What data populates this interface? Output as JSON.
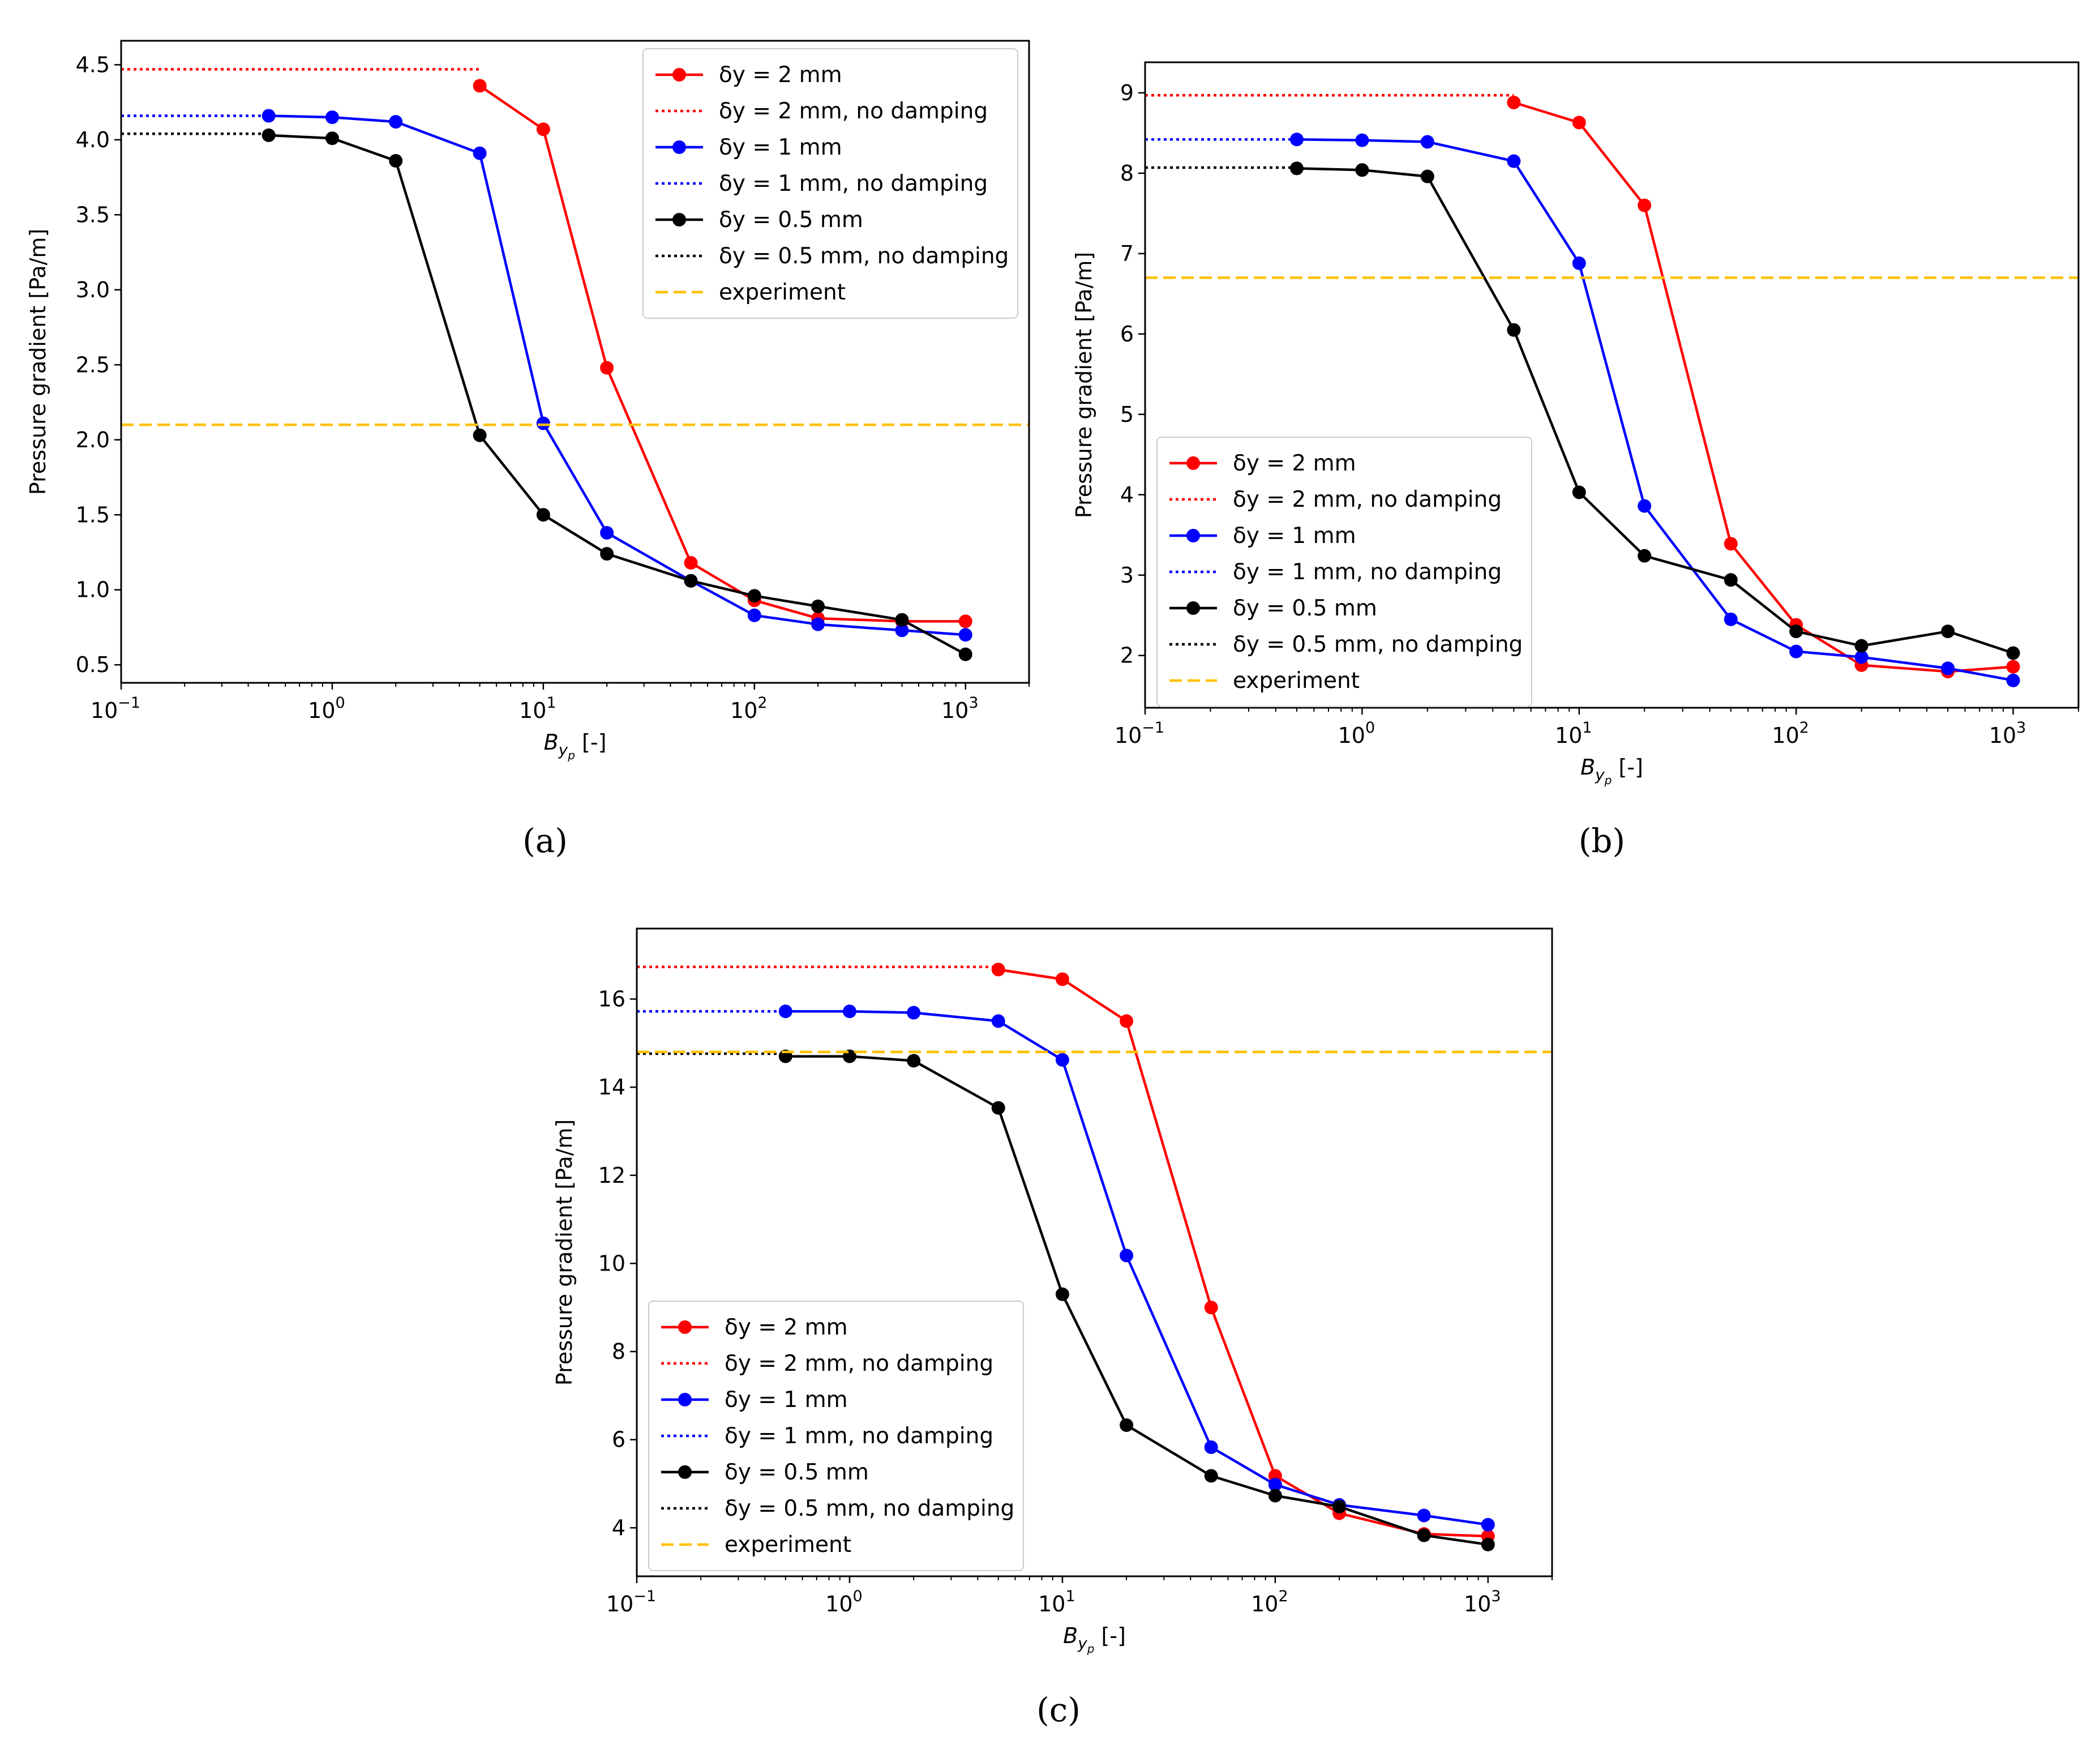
{
  "chart_data": [
    {
      "id": "a",
      "panel_label": "(a)",
      "type": "line",
      "xscale": "log",
      "xlim": [
        0.1,
        2000
      ],
      "ylim": [
        0.38,
        4.66
      ],
      "yticks": [
        0.5,
        1.0,
        1.5,
        2.0,
        2.5,
        3.0,
        3.5,
        4.0,
        4.5
      ],
      "ytick_labels": [
        "0.5",
        "1.0",
        "1.5",
        "2.0",
        "2.5",
        "3.0",
        "3.5",
        "4.0",
        "4.5"
      ],
      "xticks": [
        {
          "base": "10",
          "exp": "−1",
          "value": 0.1
        },
        {
          "base": "10",
          "exp": "0",
          "value": 1
        },
        {
          "base": "10",
          "exp": "1",
          "value": 10
        },
        {
          "base": "10",
          "exp": "2",
          "value": 100
        },
        {
          "base": "10",
          "exp": "3",
          "value": 1000
        }
      ],
      "xlabel": {
        "main": "B",
        "sub": "y",
        "subsub": "p",
        "unit": " [-]"
      },
      "ylabel": "Pressure gradient [Pa/m]",
      "legend_position": "top-right",
      "series": [
        {
          "name": "δy = 2 mm",
          "color": "#ff0000",
          "style": "solid-marker",
          "x": [
            5,
            10,
            20,
            50,
            100,
            200,
            500,
            1000
          ],
          "y": [
            4.36,
            4.07,
            2.48,
            1.18,
            0.93,
            0.81,
            0.79,
            0.79
          ]
        },
        {
          "name": "δy = 2 mm, no damping",
          "color": "#ff0000",
          "style": "dotted",
          "x": [
            0.1,
            5
          ],
          "y": [
            4.47,
            4.47
          ]
        },
        {
          "name": "δy = 1 mm",
          "color": "#0000ff",
          "style": "solid-marker",
          "x": [
            0.5,
            1,
            2,
            5,
            10,
            20,
            50,
            100,
            200,
            500,
            1000
          ],
          "y": [
            4.16,
            4.15,
            4.12,
            3.91,
            2.11,
            1.38,
            1.06,
            0.83,
            0.77,
            0.73,
            0.7
          ]
        },
        {
          "name": "δy = 1 mm, no damping",
          "color": "#0000ff",
          "style": "dotted",
          "x": [
            0.1,
            0.5
          ],
          "y": [
            4.16,
            4.16
          ]
        },
        {
          "name": "δy = 0.5 mm",
          "color": "#000000",
          "style": "solid-marker",
          "x": [
            0.5,
            1,
            2,
            5,
            10,
            20,
            50,
            100,
            200,
            500,
            1000
          ],
          "y": [
            4.03,
            4.01,
            3.86,
            2.03,
            1.5,
            1.24,
            1.06,
            0.96,
            0.89,
            0.8,
            0.57
          ]
        },
        {
          "name": "δy = 0.5 mm, no damping",
          "color": "#000000",
          "style": "dotted",
          "x": [
            0.1,
            0.5
          ],
          "y": [
            4.04,
            4.04
          ]
        },
        {
          "name": "experiment",
          "color": "#ffc000",
          "style": "dashed",
          "hline": 2.1
        }
      ]
    },
    {
      "id": "b",
      "panel_label": "(b)",
      "type": "line",
      "xscale": "log",
      "xlim": [
        0.1,
        2000
      ],
      "ylim": [
        1.35,
        9.38
      ],
      "yticks": [
        2,
        3,
        4,
        5,
        6,
        7,
        8,
        9
      ],
      "ytick_labels": [
        "2",
        "3",
        "4",
        "5",
        "6",
        "7",
        "8",
        "9"
      ],
      "xticks": [
        {
          "base": "10",
          "exp": "−1",
          "value": 0.1
        },
        {
          "base": "10",
          "exp": "0",
          "value": 1
        },
        {
          "base": "10",
          "exp": "1",
          "value": 10
        },
        {
          "base": "10",
          "exp": "2",
          "value": 100
        },
        {
          "base": "10",
          "exp": "3",
          "value": 1000
        }
      ],
      "xlabel": {
        "main": "B",
        "sub": "y",
        "subsub": "p",
        "unit": " [-]"
      },
      "ylabel": "Pressure gradient [Pa/m]",
      "legend_position": "bottom-left",
      "series": [
        {
          "name": "δy = 2 mm",
          "color": "#ff0000",
          "style": "solid-marker",
          "x": [
            5,
            10,
            20,
            50,
            100,
            200,
            500,
            1000
          ],
          "y": [
            8.88,
            8.63,
            7.6,
            3.39,
            2.38,
            1.88,
            1.8,
            1.86
          ]
        },
        {
          "name": "δy = 2 mm, no damping",
          "color": "#ff0000",
          "style": "dotted",
          "x": [
            0.1,
            5
          ],
          "y": [
            8.97,
            8.97
          ]
        },
        {
          "name": "δy = 1 mm",
          "color": "#0000ff",
          "style": "solid-marker",
          "x": [
            0.5,
            1,
            2,
            5,
            10,
            20,
            50,
            100,
            200,
            500,
            1000
          ],
          "y": [
            8.42,
            8.41,
            8.39,
            8.15,
            6.88,
            3.86,
            2.45,
            2.05,
            1.98,
            1.84,
            1.69
          ]
        },
        {
          "name": "δy = 1 mm, no damping",
          "color": "#0000ff",
          "style": "dotted",
          "x": [
            0.1,
            0.5
          ],
          "y": [
            8.42,
            8.42
          ]
        },
        {
          "name": "δy = 0.5 mm",
          "color": "#000000",
          "style": "solid-marker",
          "x": [
            0.5,
            1,
            2,
            5,
            10,
            20,
            50,
            100,
            200,
            500,
            1000
          ],
          "y": [
            8.06,
            8.04,
            7.96,
            6.05,
            4.03,
            3.24,
            2.94,
            2.3,
            2.12,
            2.3,
            2.03
          ]
        },
        {
          "name": "δy = 0.5 mm, no damping",
          "color": "#000000",
          "style": "dotted",
          "x": [
            0.1,
            0.5
          ],
          "y": [
            8.07,
            8.07
          ]
        },
        {
          "name": "experiment",
          "color": "#ffc000",
          "style": "dashed",
          "hline": 6.7
        }
      ]
    },
    {
      "id": "c",
      "panel_label": "(c)",
      "type": "line",
      "xscale": "log",
      "xlim": [
        0.1,
        2000
      ],
      "ylim": [
        2.9,
        17.6
      ],
      "yticks": [
        4,
        6,
        8,
        10,
        12,
        14,
        16
      ],
      "ytick_labels": [
        "4",
        "6",
        "8",
        "10",
        "12",
        "14",
        "16"
      ],
      "xticks": [
        {
          "base": "10",
          "exp": "−1",
          "value": 0.1
        },
        {
          "base": "10",
          "exp": "0",
          "value": 1
        },
        {
          "base": "10",
          "exp": "1",
          "value": 10
        },
        {
          "base": "10",
          "exp": "2",
          "value": 100
        },
        {
          "base": "10",
          "exp": "3",
          "value": 1000
        }
      ],
      "xlabel": {
        "main": "B",
        "sub": "y",
        "subsub": "p",
        "unit": " [-]"
      },
      "ylabel": "Pressure gradient [Pa/m]",
      "legend_position": "bottom-left",
      "series": [
        {
          "name": "δy = 2 mm",
          "color": "#ff0000",
          "style": "solid-marker",
          "x": [
            5,
            10,
            20,
            50,
            100,
            200,
            500,
            1000
          ],
          "y": [
            16.67,
            16.45,
            15.5,
            9.0,
            5.18,
            4.33,
            3.86,
            3.81
          ]
        },
        {
          "name": "δy = 2 mm, no damping",
          "color": "#ff0000",
          "style": "dotted",
          "x": [
            0.1,
            5
          ],
          "y": [
            16.73,
            16.73
          ]
        },
        {
          "name": "δy = 1 mm",
          "color": "#0000ff",
          "style": "solid-marker",
          "x": [
            0.5,
            1,
            2,
            5,
            10,
            20,
            50,
            100,
            200,
            500,
            1000
          ],
          "y": [
            15.72,
            15.72,
            15.69,
            15.5,
            14.62,
            10.18,
            5.83,
            4.98,
            4.52,
            4.28,
            4.07
          ]
        },
        {
          "name": "δy = 1 mm, no damping",
          "color": "#0000ff",
          "style": "dotted",
          "x": [
            0.1,
            0.5
          ],
          "y": [
            15.72,
            15.72
          ]
        },
        {
          "name": "δy = 0.5 mm",
          "color": "#000000",
          "style": "solid-marker",
          "x": [
            0.5,
            1,
            2,
            5,
            10,
            20,
            50,
            100,
            200,
            500,
            1000
          ],
          "y": [
            14.7,
            14.7,
            14.6,
            13.53,
            9.3,
            6.33,
            5.18,
            4.73,
            4.48,
            3.83,
            3.62
          ]
        },
        {
          "name": "δy = 0.5 mm, no damping",
          "color": "#000000",
          "style": "dotted",
          "x": [
            0.1,
            0.5
          ],
          "y": [
            14.76,
            14.76
          ]
        },
        {
          "name": "experiment",
          "color": "#ffc000",
          "style": "dashed",
          "hline": 14.8
        }
      ]
    }
  ]
}
